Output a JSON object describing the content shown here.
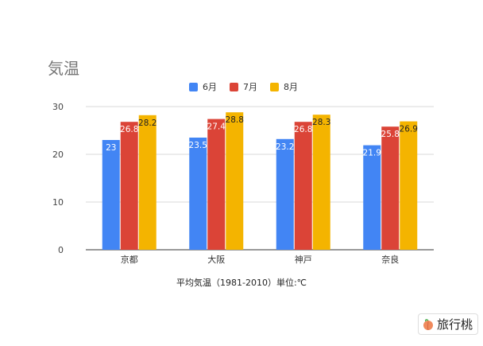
{
  "chart_data": {
    "type": "bar",
    "title": "気温",
    "xlabel": "平均気温（1981-2010）単位:℃",
    "categories": [
      "京都",
      "大阪",
      "神戸",
      "奈良"
    ],
    "series": [
      {
        "name": "6月",
        "color": "#4285f4",
        "values": [
          23,
          23.5,
          23.2,
          21.9
        ],
        "labels": [
          "23",
          "23.5",
          "23.2",
          "21.9"
        ]
      },
      {
        "name": "7月",
        "color": "#db4437",
        "values": [
          26.8,
          27.4,
          26.8,
          25.8
        ],
        "labels": [
          "26.8",
          "27.4",
          "26.8",
          "25.8"
        ]
      },
      {
        "name": "8月",
        "color": "#f4b400",
        "values": [
          28.2,
          28.8,
          28.3,
          26.9
        ],
        "labels": [
          "28.2",
          "28.8",
          "28.3",
          "26.9"
        ]
      }
    ],
    "ylim": [
      0,
      30
    ],
    "yticks": [
      0,
      10,
      20,
      30
    ],
    "grid": true,
    "legend": "top"
  },
  "watermark": {
    "text": "旅行桃"
  }
}
